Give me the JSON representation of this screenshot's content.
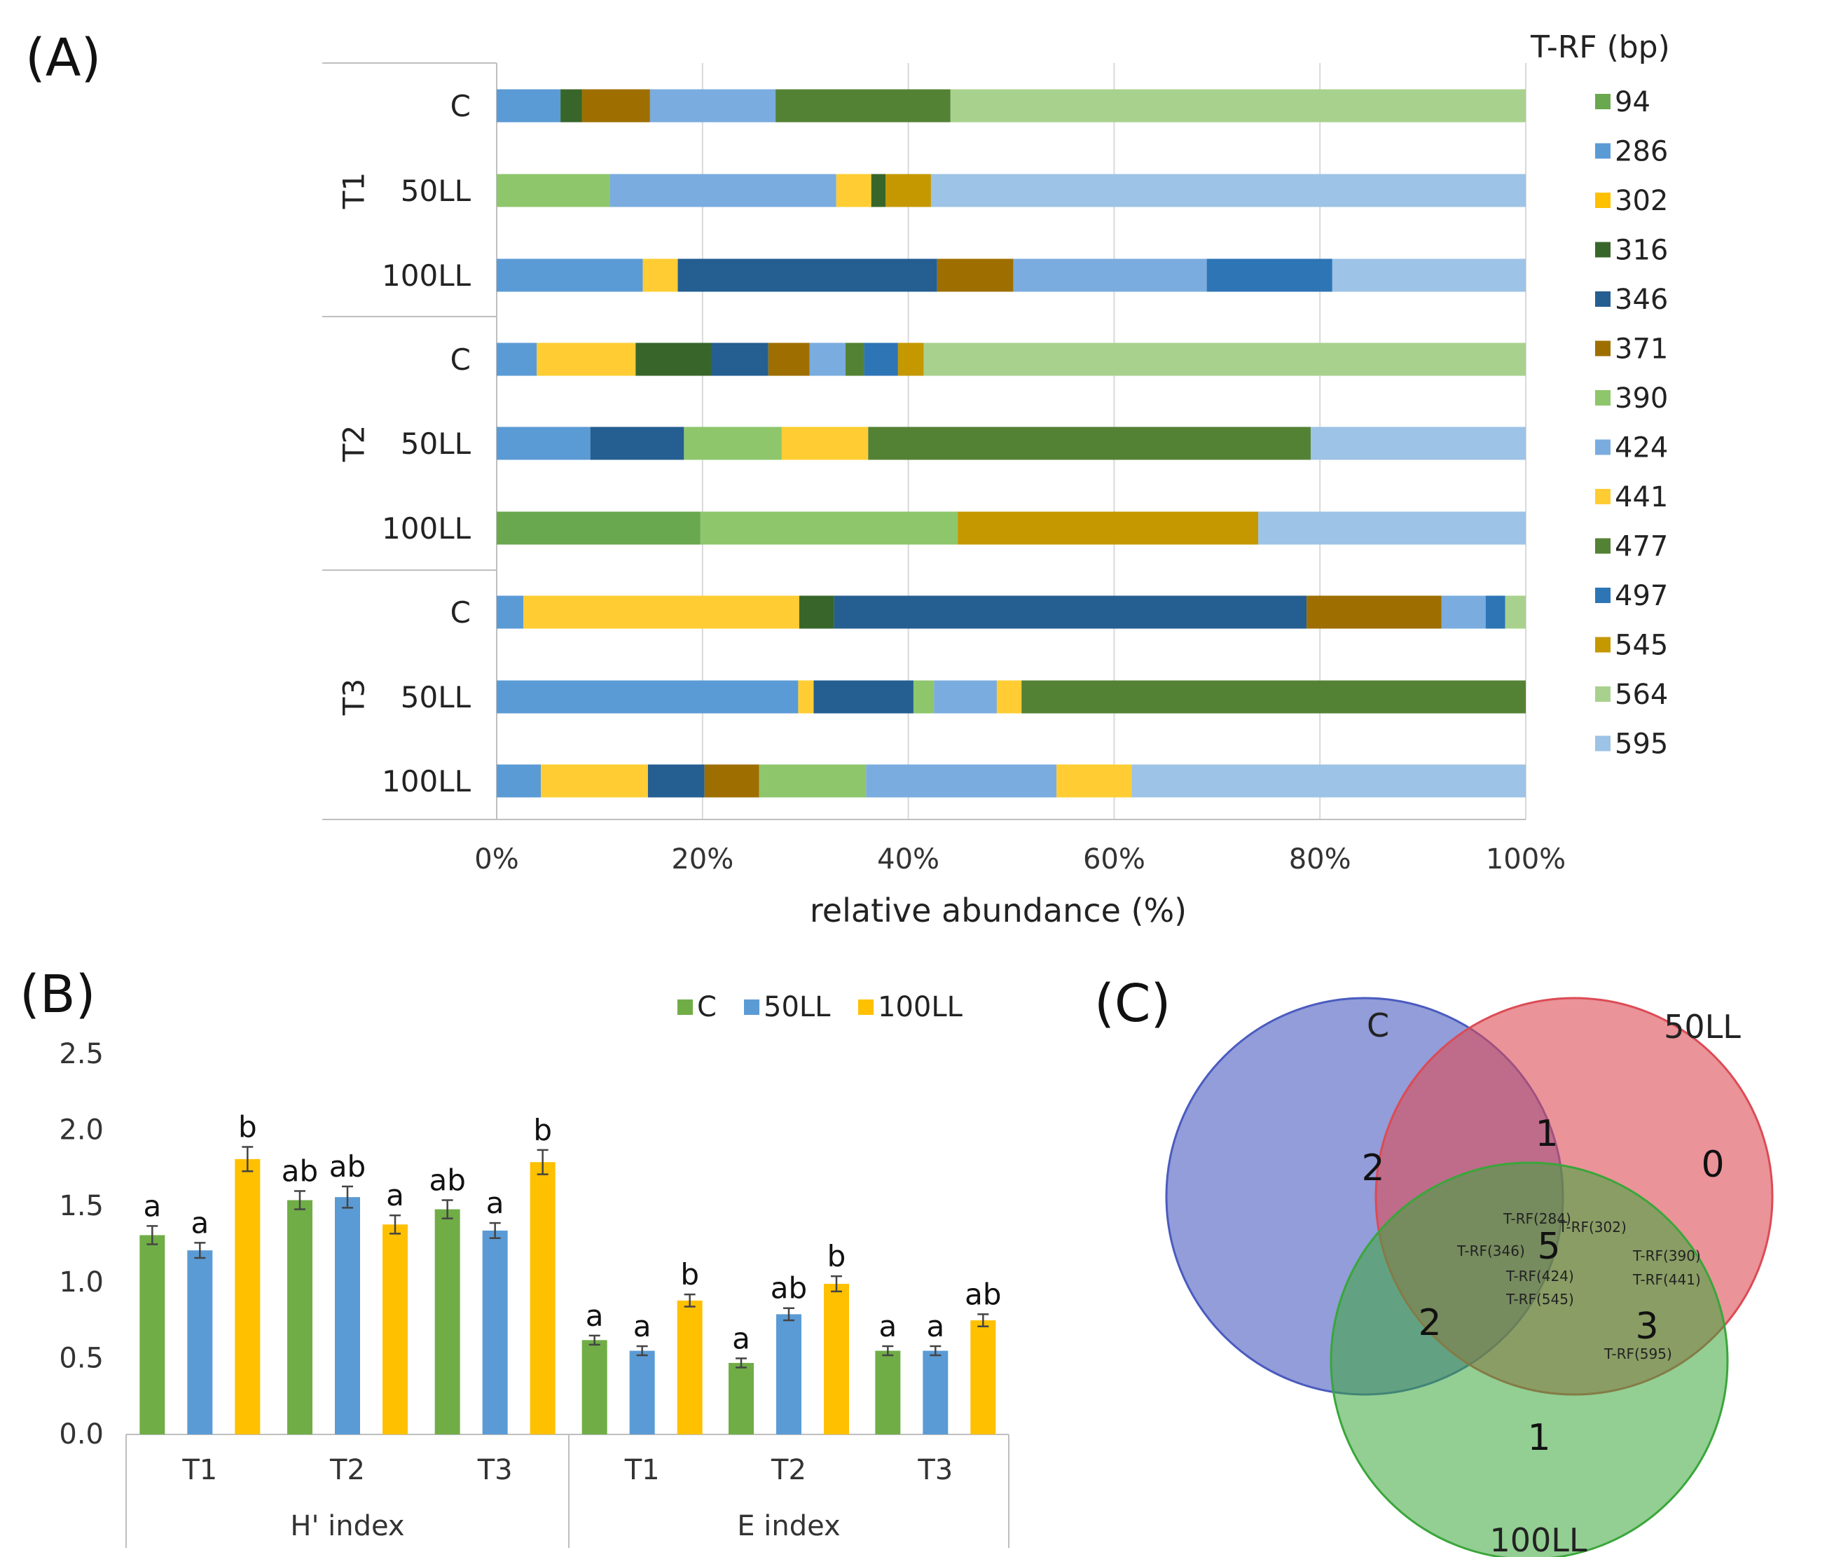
{
  "panels": {
    "a": "(A)",
    "b": "(B)",
    "c": "(C)"
  },
  "chart_data": [
    {
      "type": "bar",
      "orientation": "horizontal",
      "stacked": true,
      "legend_title": "T-RF (bp)",
      "xlabel": "relative abundance (%)",
      "xlim": [
        0,
        100
      ],
      "xticks": [
        "0%",
        "20%",
        "40%",
        "60%",
        "80%",
        "100%"
      ],
      "legend": [
        {
          "name": "94",
          "color": "#6aa84f"
        },
        {
          "name": "286",
          "color": "#5b9bd5"
        },
        {
          "name": "302",
          "color": "#ffc000"
        },
        {
          "name": "316",
          "color": "#38662a"
        },
        {
          "name": "346",
          "color": "#255e91"
        },
        {
          "name": "371",
          "color": "#9e6f00"
        },
        {
          "name": "390",
          "color": "#8ec66b"
        },
        {
          "name": "424",
          "color": "#7aacdf"
        },
        {
          "name": "441",
          "color": "#ffcd33"
        },
        {
          "name": "477",
          "color": "#548235"
        },
        {
          "name": "497",
          "color": "#2e75b6"
        },
        {
          "name": "545",
          "color": "#c59800"
        },
        {
          "name": "564",
          "color": "#a9d18e"
        },
        {
          "name": "595",
          "color": "#9dc3e6"
        }
      ],
      "groups": [
        {
          "name": "T1",
          "rows": [
            {
              "label": "C",
              "segments": [
                [
                  "286",
                  6.2
                ],
                [
                  "316",
                  2.1
                ],
                [
                  "371",
                  6.6
                ],
                [
                  "424",
                  12.2
                ],
                [
                  "477",
                  17.0
                ],
                [
                  "564",
                  55.9
                ]
              ]
            },
            {
              "label": "50LL",
              "segments": [
                [
                  "390",
                  11.0
                ],
                [
                  "424",
                  22.0
                ],
                [
                  "441",
                  3.4
                ],
                [
                  "316",
                  1.4
                ],
                [
                  "545",
                  4.4
                ],
                [
                  "595",
                  57.8
                ]
              ]
            },
            {
              "label": "100LL",
              "segments": [
                [
                  "286",
                  14.2
                ],
                [
                  "441",
                  3.4
                ],
                [
                  "346",
                  25.2
                ],
                [
                  "371",
                  7.4
                ],
                [
                  "424",
                  18.8
                ],
                [
                  "497",
                  12.2
                ],
                [
                  "595",
                  18.8
                ]
              ]
            }
          ]
        },
        {
          "name": "T2",
          "rows": [
            {
              "label": "C",
              "segments": [
                [
                  "286",
                  3.9
                ],
                [
                  "441",
                  9.6
                ],
                [
                  "316",
                  7.4
                ],
                [
                  "346",
                  5.5
                ],
                [
                  "371",
                  4.0
                ],
                [
                  "424",
                  3.5
                ],
                [
                  "477",
                  1.8
                ],
                [
                  "497",
                  3.3
                ],
                [
                  "545",
                  2.5
                ],
                [
                  "564",
                  58.5
                ]
              ]
            },
            {
              "label": "50LL",
              "segments": [
                [
                  "286",
                  9.1
                ],
                [
                  "346",
                  9.1
                ],
                [
                  "390",
                  9.5
                ],
                [
                  "441",
                  8.4
                ],
                [
                  "477",
                  43.0
                ],
                [
                  "595",
                  20.9
                ]
              ]
            },
            {
              "label": "100LL",
              "segments": [
                [
                  "94",
                  19.8
                ],
                [
                  "390",
                  25.0
                ],
                [
                  "545",
                  29.2
                ],
                [
                  "595",
                  26.0
                ]
              ]
            }
          ]
        },
        {
          "name": "T3",
          "rows": [
            {
              "label": "C",
              "segments": [
                [
                  "286",
                  2.6
                ],
                [
                  "441",
                  26.8
                ],
                [
                  "316",
                  3.4
                ],
                [
                  "346",
                  45.9
                ],
                [
                  "371",
                  13.1
                ],
                [
                  "424",
                  4.3
                ],
                [
                  "497",
                  1.9
                ],
                [
                  "564",
                  2.0
                ]
              ]
            },
            {
              "label": "50LL",
              "segments": [
                [
                  "286",
                  29.3
                ],
                [
                  "441",
                  1.5
                ],
                [
                  "346",
                  9.7
                ],
                [
                  "390",
                  2.0
                ],
                [
                  "424",
                  6.1
                ],
                [
                  "441_b",
                  2.4
                ],
                [
                  "477",
                  49.0
                ]
              ]
            },
            {
              "label": "100LL",
              "segments": [
                [
                  "286",
                  4.3
                ],
                [
                  "441",
                  10.4
                ],
                [
                  "346",
                  5.5
                ],
                [
                  "371",
                  5.3
                ],
                [
                  "390",
                  10.4
                ],
                [
                  "424",
                  18.5
                ],
                [
                  "441_b",
                  7.3
                ],
                [
                  "595",
                  38.3
                ]
              ]
            }
          ]
        }
      ]
    },
    {
      "type": "bar",
      "orientation": "vertical",
      "ylim": [
        0,
        2.5
      ],
      "yticks": [
        "0.0",
        "0.5",
        "1.0",
        "1.5",
        "2.0",
        "2.5"
      ],
      "series": [
        {
          "name": "C",
          "color": "#70ad47"
        },
        {
          "name": "50LL",
          "color": "#5b9bd5"
        },
        {
          "name": "100LL",
          "color": "#ffc000"
        }
      ],
      "groups": [
        {
          "name": "H' index",
          "categories": [
            {
              "label": "T1",
              "values": [
                1.31,
                1.21,
                1.81
              ],
              "errors": [
                0.06,
                0.05,
                0.08
              ],
              "letters": [
                "a",
                "a",
                "b"
              ]
            },
            {
              "label": "T2",
              "values": [
                1.54,
                1.56,
                1.38
              ],
              "errors": [
                0.06,
                0.07,
                0.06
              ],
              "letters": [
                "ab",
                "ab",
                "a"
              ]
            },
            {
              "label": "T3",
              "values": [
                1.48,
                1.34,
                1.79
              ],
              "errors": [
                0.06,
                0.05,
                0.08
              ],
              "letters": [
                "ab",
                "a",
                "b"
              ]
            }
          ]
        },
        {
          "name": "E index",
          "categories": [
            {
              "label": "T1",
              "values": [
                0.62,
                0.55,
                0.88
              ],
              "errors": [
                0.03,
                0.03,
                0.04
              ],
              "letters": [
                "a",
                "a",
                "b"
              ]
            },
            {
              "label": "T2",
              "values": [
                0.47,
                0.79,
                0.99
              ],
              "errors": [
                0.03,
                0.04,
                0.05
              ],
              "letters": [
                "a",
                "ab",
                "b"
              ]
            },
            {
              "label": "T3",
              "values": [
                0.55,
                0.55,
                0.75
              ],
              "errors": [
                0.03,
                0.03,
                0.04
              ],
              "letters": [
                "a",
                "a",
                "ab"
              ]
            }
          ]
        }
      ]
    },
    {
      "type": "venn",
      "sets": [
        {
          "name": "C",
          "color": "#4a5bbf"
        },
        {
          "name": "50LL",
          "color": "#dc4b55"
        },
        {
          "name": "100LL",
          "color": "#3aa63a"
        }
      ],
      "regions": {
        "C_only": 2,
        "50LL_only": 0,
        "100LL_only": 1,
        "C_50LL": 1,
        "C_100LL": 2,
        "50LL_100LL": 3,
        "all": 5
      },
      "annotations": {
        "all": [
          "T-RF(284)",
          "T-RF(302)",
          "T-RF(346)",
          "T-RF(424)",
          "T-RF(545)"
        ],
        "50LL_100LL": [
          "T-RF(390)",
          "T-RF(441)",
          "T-RF(595)"
        ]
      }
    }
  ]
}
